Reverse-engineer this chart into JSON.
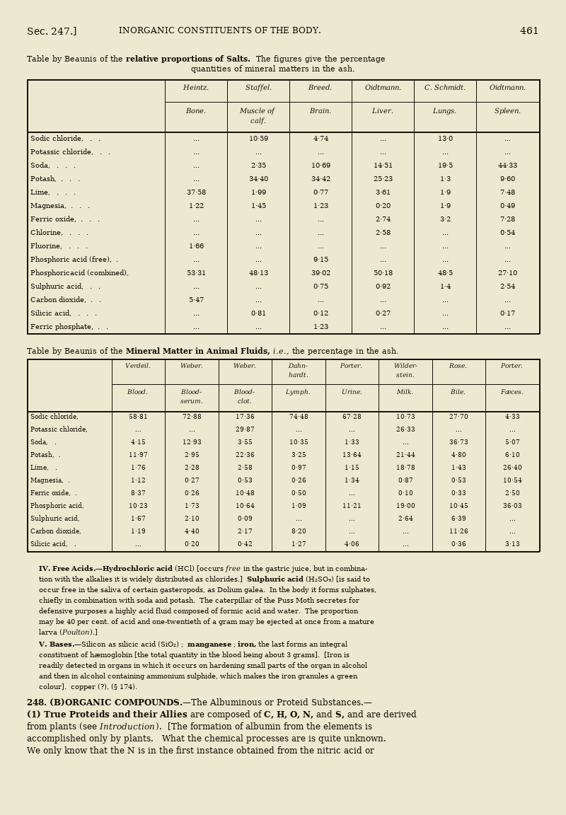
{
  "bg_color": "#ede8d0",
  "text_color": "#1a1008",
  "t1_col_headers_r1": [
    "Heintz.",
    "Staffel.",
    "Breed.",
    "Oidtmann.",
    "C. Schmidt.",
    "Oidtmann."
  ],
  "t1_col_headers_r2": [
    "Bone.",
    "Muscle of\ncalf.",
    "Brain.",
    "Liver.",
    "Lungs.",
    "Spleen."
  ],
  "t1_rows": [
    [
      "Sodic chloride,   .   .",
      "...",
      "10·59",
      "4·74",
      "...",
      "13·0",
      "..."
    ],
    [
      "Potassic chloride,   .   .",
      "...",
      "...",
      "...",
      "...",
      "...",
      "..."
    ],
    [
      "Soda,   .   .   .",
      "...",
      "2·35",
      "10·69",
      "14·51",
      "19·5",
      "44·33"
    ],
    [
      "Potash,  .   .   .",
      "...",
      "34·40",
      "34·42",
      "25·23",
      "1·3",
      "9·60"
    ],
    [
      "Lime,   .   .   .",
      "37·58",
      "1·99",
      "0·77",
      "3·61",
      "1·9",
      "7·48"
    ],
    [
      "Magnesia,  .   .   .",
      "1·22",
      "1·45",
      "1·23",
      "0·20",
      "1·9",
      "0·49"
    ],
    [
      "Ferric oxide,  .   .   .",
      "...",
      "...",
      "...",
      "2·74",
      "3·2",
      "7·28"
    ],
    [
      "Chlorine,   .   .   .",
      "...",
      "...",
      "...",
      "2·58",
      "...",
      "0·54"
    ],
    [
      "Fluorine,   .   .   .",
      "1·66",
      "...",
      "...",
      "...",
      "...",
      "..."
    ],
    [
      "Phosphoric acid (free),  .",
      "...",
      "...",
      "9·15",
      "...",
      "...",
      "..."
    ],
    [
      "Phosphoricacid (combined),",
      "53·31",
      "48·13",
      "39·02",
      "50·18",
      "48·5",
      "27·10"
    ],
    [
      "Sulphuric acid,   .   .",
      "...",
      "...",
      "0·75",
      "0·92",
      "1·4",
      "2·54"
    ],
    [
      "Carbon dioxide,  .   .",
      "5·47",
      "...",
      "...",
      "...",
      "...",
      "..."
    ],
    [
      "Silicic acid,   .   .   .",
      "...",
      "0·81",
      "0·12",
      "0·27",
      "...",
      "0·17"
    ],
    [
      "Ferric phosphate,  .   .",
      "...",
      "...",
      "1·23",
      "...",
      "...",
      "..."
    ]
  ],
  "t2_col_headers_r1": [
    "Verdeil.",
    "Weber.",
    "Weber.",
    "Dahn-\nhardt.",
    "Porter.",
    "Wilder-\nstein.",
    "Rose.",
    "Porter."
  ],
  "t2_col_headers_r2": [
    "Blood.",
    "Blood-\nserum.",
    "Blood-\nclot.",
    "Lymph.",
    "Urine.",
    "Milk.",
    "Bile.",
    "Fæces."
  ],
  "t2_rows": [
    [
      "Sodic chloride,",
      "58·81",
      "72·88",
      "17·36",
      "74·48",
      "67·28",
      "10·73",
      "27·70",
      "4·33"
    ],
    [
      "Potassic chloride,",
      "...",
      "...",
      "29·87",
      "...",
      "...",
      "26·33",
      "...",
      "..."
    ],
    [
      "Soda,   .",
      "4·15",
      "12·93",
      "3·55",
      "10·35",
      "1·33",
      "...",
      "36·73",
      "5·07"
    ],
    [
      "Potash,  .",
      "11·97",
      "2·95",
      "22·36",
      "3·25",
      "13·64",
      "21·44",
      "4·80",
      "6·10"
    ],
    [
      "Lime,   .",
      "1·76",
      "2·28",
      "2·58",
      "0·97",
      "1·15",
      "18·78",
      "1·43",
      "26·40"
    ],
    [
      "Magnesia,  .",
      "1·12",
      "0·27",
      "0·53",
      "0·26",
      "1·34",
      "0·87",
      "0·53",
      "10·54"
    ],
    [
      "Ferric oxide,  .",
      "8·37",
      "0·26",
      "10·48",
      "0·50",
      "...",
      "0·10",
      "0·33",
      "2·50"
    ],
    [
      "Phosphoric acid,",
      "10·23",
      "1·73",
      "10·64",
      "1·09",
      "11·21",
      "19·00",
      "10·45",
      "36·03"
    ],
    [
      "Sulphuric acid,",
      "1·67",
      "2·10",
      "0·09",
      "...",
      "...",
      "2·64",
      "6·39",
      "..."
    ],
    [
      "Carbon dioxide,",
      "1·19",
      "4·40",
      "2·17",
      "8·20",
      "...",
      "...",
      "11·26",
      "..."
    ],
    [
      "Silicic acid,   .",
      "...",
      "0·20",
      "0·42",
      "1·27",
      "4·06",
      "...",
      "0·36",
      "3·13"
    ]
  ]
}
